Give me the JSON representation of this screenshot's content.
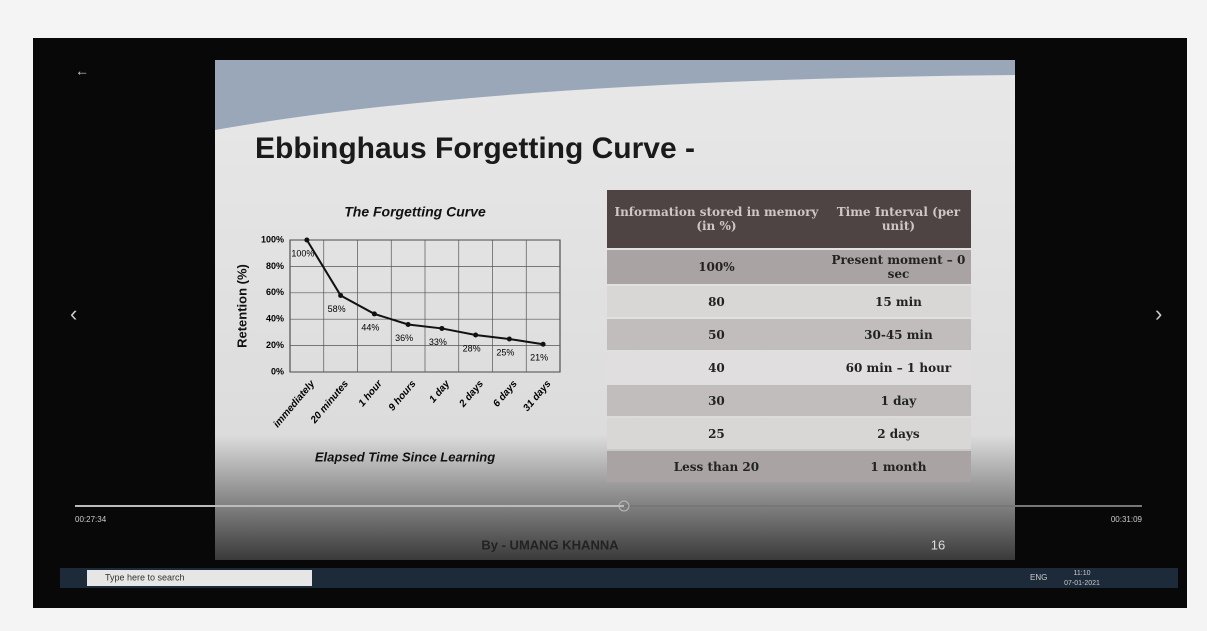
{
  "player": {
    "elapsed": "00:27:34",
    "total": "00:31:09"
  },
  "slide": {
    "title": "Ebbinghaus Forgetting Curve -",
    "author": "By - UMANG KHANNA",
    "page": "16"
  },
  "taskbar": {
    "search": "Type here to search",
    "language": "ENG",
    "time": "11:10",
    "date": "07-01-2021"
  },
  "table": {
    "header": [
      "Information stored in memory (in %)",
      "Time Interval (per unit)"
    ],
    "rows": [
      [
        "100%",
        "Present moment – 0 sec"
      ],
      [
        "80",
        "15 min"
      ],
      [
        "50",
        "30-45 min"
      ],
      [
        "40",
        "60 min – 1 hour"
      ],
      [
        "30",
        "1 day"
      ],
      [
        "25",
        "2 days"
      ],
      [
        "Less than 20",
        "1 month"
      ]
    ]
  },
  "chart_data": {
    "type": "line",
    "title": "The Forgetting Curve",
    "x_label": "Elapsed Time Since Learning",
    "y_label": "Retention (%)",
    "categories": [
      "immediately",
      "20 minutes",
      "1 hour",
      "9 hours",
      "1 day",
      "2 days",
      "6 days",
      "31 days"
    ],
    "values": [
      100,
      58,
      44,
      36,
      33,
      28,
      25,
      21
    ],
    "value_labels": [
      "100%",
      "58%",
      "44%",
      "36%",
      "33%",
      "28%",
      "25%",
      "21%"
    ],
    "color": "#111111",
    "ylim": [
      0,
      100
    ],
    "yticks": [
      {
        "value": 0,
        "label": "0%"
      },
      {
        "value": 20,
        "label": "20%"
      },
      {
        "value": 40,
        "label": "40%"
      },
      {
        "value": 60,
        "label": "60%"
      },
      {
        "value": 80,
        "label": "80%"
      },
      {
        "value": 100,
        "label": "100%"
      }
    ],
    "grid": true
  }
}
